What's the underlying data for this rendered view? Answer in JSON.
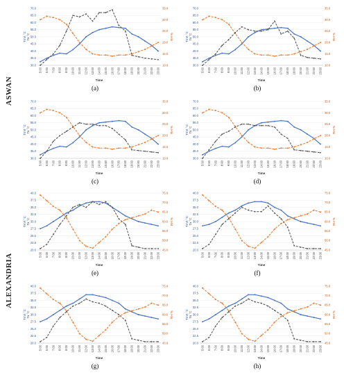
{
  "groups": [
    {
      "label": "ASWAN"
    },
    {
      "label": "ALEXANDRIA"
    }
  ],
  "colors": {
    "tmrt": "#4472C4",
    "rh": "#ED7D31",
    "ta": "#595959",
    "left_axis": "#2E5597",
    "right_axis": "#C55A11"
  },
  "chart_data": [
    {
      "panel": "(a)",
      "type": "line",
      "x": [
        "5:00",
        "6:00",
        "7:00",
        "8:00",
        "9:00",
        "10:00",
        "11:00",
        "12:00",
        "13:00",
        "14:00",
        "15:00",
        "16:00",
        "17:00",
        "18:00",
        "19:00",
        "20:00",
        "21:00",
        "22:00",
        "23:00"
      ],
      "xlabel": "Time",
      "ylabel": "Tmrt °C",
      "ylabel_inner": "Ta °C",
      "y2label": "RH %",
      "ylim": [
        30,
        70
      ],
      "yticks": [
        "30.0",
        "35.0",
        "40.0",
        "45.0",
        "50.0",
        "55.0",
        "60.0",
        "65.0",
        "70.0"
      ],
      "y2lim": [
        10,
        35
      ],
      "y2ticks": [
        "10.0",
        "15.0",
        "20.0",
        "25.0",
        "30.0",
        "35.0"
      ],
      "series": [
        {
          "key": "tmrt",
          "values": [
            32.5,
            35,
            37,
            38.5,
            38,
            41,
            45,
            50,
            53,
            55,
            56,
            57,
            56.5,
            56,
            52,
            50,
            47,
            44,
            40
          ]
        },
        {
          "key": "rh",
          "values": [
            30,
            31.5,
            31,
            30,
            28,
            24,
            20,
            17,
            15,
            14.5,
            14.5,
            14,
            14.5,
            14.5,
            15,
            16,
            17,
            18.5,
            20
          ]
        },
        {
          "key": "ta",
          "values": [
            30,
            34,
            38,
            44,
            54,
            65,
            64,
            66,
            61,
            67,
            67,
            69,
            58,
            54,
            37,
            36,
            35,
            34.5,
            34
          ]
        }
      ]
    },
    {
      "panel": "(b)",
      "type": "line",
      "x": [
        "5:00",
        "6:00",
        "7:00",
        "8:00",
        "9:00",
        "10:00",
        "11:00",
        "12:00",
        "13:00",
        "14:00",
        "15:00",
        "16:00",
        "17:00",
        "18:00",
        "19:00",
        "20:00",
        "21:00",
        "22:00",
        "23:00"
      ],
      "xlabel": "Time",
      "ylabel": "Tmrt °C",
      "ylabel_inner": "Ta °C",
      "y2label": "RH %",
      "ylim": [
        30,
        70
      ],
      "yticks": [
        "30.0",
        "35.0",
        "40.0",
        "45.0",
        "50.0",
        "55.0",
        "60.0",
        "65.0",
        "70.0"
      ],
      "y2lim": [
        10,
        35
      ],
      "y2ticks": [
        "10.0",
        "15.0",
        "20.0",
        "25.0",
        "30.0",
        "35.0"
      ],
      "series": [
        {
          "key": "tmrt",
          "values": [
            32.5,
            35,
            37,
            38.5,
            38,
            41,
            45,
            50,
            53,
            55,
            55.5,
            56,
            56.5,
            56,
            52,
            50,
            47,
            44,
            40
          ]
        },
        {
          "key": "rh",
          "values": [
            30,
            31.5,
            31,
            30,
            28,
            24,
            20,
            17,
            15,
            14.5,
            14.5,
            14,
            14.5,
            14.5,
            15,
            16,
            17,
            18.5,
            20
          ]
        },
        {
          "key": "ta",
          "values": [
            30,
            34,
            38,
            44,
            48,
            53,
            57,
            55,
            54,
            54,
            55,
            61,
            52,
            54,
            49,
            37,
            35.5,
            35,
            34.5
          ]
        }
      ]
    },
    {
      "panel": "(c)",
      "type": "line",
      "x": [
        "5:00",
        "6:00",
        "7:00",
        "8:00",
        "9:00",
        "10:00",
        "11:00",
        "12:00",
        "13:00",
        "14:00",
        "15:00",
        "16:00",
        "17:00",
        "18:00",
        "19:00",
        "20:00",
        "21:00",
        "22:00",
        "23:00"
      ],
      "xlabel": "Time",
      "ylabel": "Tmrt °C",
      "ylabel_inner": "Ta °C",
      "y2label": "RH %",
      "ylim": [
        30,
        70
      ],
      "yticks": [
        "30.0",
        "35.0",
        "40.0",
        "45.0",
        "50.0",
        "55.0",
        "60.0",
        "65.0",
        "70.0"
      ],
      "y2lim": [
        10,
        35
      ],
      "y2ticks": [
        "10.0",
        "15.0",
        "20.0",
        "25.0",
        "30.0",
        "35.0"
      ],
      "series": [
        {
          "key": "tmrt",
          "values": [
            32.5,
            35,
            37,
            38.5,
            38,
            41,
            45,
            50,
            53,
            55,
            55.5,
            56,
            56.5,
            56,
            52,
            50,
            47,
            44,
            40
          ]
        },
        {
          "key": "rh",
          "values": [
            30,
            31.5,
            31,
            30,
            28,
            24,
            20,
            17,
            15,
            14.5,
            14.5,
            14,
            14.5,
            14.5,
            15,
            16,
            17,
            18.5,
            20
          ]
        },
        {
          "key": "ta",
          "values": [
            30,
            35,
            42,
            46,
            49,
            52,
            55,
            54,
            54,
            53,
            53,
            51,
            47,
            43,
            36,
            35.5,
            35,
            34.5,
            34
          ]
        }
      ]
    },
    {
      "panel": "(d)",
      "type": "line",
      "x": [
        "5:00",
        "6:00",
        "7:00",
        "8:00",
        "9:00",
        "10:00",
        "11:00",
        "12:00",
        "13:00",
        "14:00",
        "15:00",
        "16:00",
        "17:00",
        "18:00",
        "19:00",
        "20:00",
        "21:00",
        "22:00",
        "23:00"
      ],
      "xlabel": "Time",
      "ylabel": "Tmrt °C",
      "ylabel_inner": "Ta °C",
      "y2label": "RH %",
      "ylim": [
        30,
        70
      ],
      "yticks": [
        "30.0",
        "35.0",
        "40.0",
        "45.0",
        "50.0",
        "55.0",
        "60.0",
        "65.0",
        "70.0"
      ],
      "y2lim": [
        10,
        35
      ],
      "y2ticks": [
        "10.0",
        "15.0",
        "20.0",
        "25.0",
        "30.0",
        "35.0"
      ],
      "series": [
        {
          "key": "tmrt",
          "values": [
            32.5,
            35,
            37,
            38.5,
            38,
            41,
            45,
            50,
            53,
            55,
            55.5,
            56,
            56.5,
            56,
            52,
            50,
            47,
            44,
            40
          ]
        },
        {
          "key": "rh",
          "values": [
            30,
            31.5,
            31,
            30,
            28,
            24,
            20,
            17,
            15,
            14.5,
            14.5,
            14,
            14.5,
            14.5,
            15,
            16,
            17,
            18.5,
            20
          ]
        },
        {
          "key": "ta",
          "values": [
            30,
            36,
            42,
            47,
            49,
            52,
            54,
            54,
            53,
            53,
            53,
            52,
            47,
            44,
            36,
            35.5,
            35,
            34.5,
            34
          ]
        }
      ]
    },
    {
      "panel": "(e)",
      "type": "line",
      "x": [
        "5:00",
        "6:00",
        "7:00",
        "8:00",
        "9:00",
        "10:00",
        "11:00",
        "12:00",
        "13:00",
        "14:00",
        "15:00",
        "16:00",
        "17:00",
        "18:00",
        "19:00",
        "20:00",
        "21:00",
        "22:00",
        "23:00"
      ],
      "xlabel": "Time",
      "ylabel": "Tmrt °C",
      "ylabel_inner": "Ta °C",
      "y2label": "RH %",
      "ylim": [
        20,
        40
      ],
      "yticks": [
        "20.0",
        "22.5",
        "25.0",
        "27.5",
        "30.0",
        "32.5",
        "35.0",
        "37.5",
        "40.0"
      ],
      "y2lim": [
        45,
        75
      ],
      "y2ticks": [
        "45.0",
        "50.0",
        "55.0",
        "60.0",
        "65.0",
        "70.0",
        "75.0"
      ],
      "series": [
        {
          "key": "tmrt",
          "values": [
            27.5,
            28.5,
            30,
            31.5,
            33,
            34,
            35.5,
            36.5,
            37,
            37,
            36.5,
            35,
            33.5,
            32,
            31,
            30,
            29.5,
            29,
            28.5
          ]
        },
        {
          "key": "rh",
          "values": [
            74,
            71,
            68,
            66,
            62,
            56,
            50,
            47,
            46,
            49,
            52,
            56,
            59,
            61,
            62,
            63,
            64,
            66,
            65
          ]
        },
        {
          "key": "ta",
          "values": [
            20.5,
            22,
            25.5,
            29,
            32,
            35,
            36,
            35,
            37,
            36,
            37,
            35,
            31,
            29,
            21.5,
            21,
            20.5,
            20.5,
            20.5
          ]
        }
      ]
    },
    {
      "panel": "(f)",
      "type": "line",
      "x": [
        "5:00",
        "6:00",
        "7:00",
        "8:00",
        "9:00",
        "10:00",
        "11:00",
        "12:00",
        "13:00",
        "14:00",
        "15:00",
        "16:00",
        "17:00",
        "18:00",
        "19:00",
        "20:00",
        "21:00",
        "22:00",
        "23:00"
      ],
      "xlabel": "Time",
      "ylabel": "Tmrt °C",
      "ylabel_inner": "Ta °C",
      "y2label": "RH %",
      "ylim": [
        20,
        40
      ],
      "yticks": [
        "20.0",
        "22.5",
        "25.0",
        "27.5",
        "30.0",
        "32.5",
        "35.0",
        "37.5",
        "40.0"
      ],
      "y2lim": [
        45,
        75
      ],
      "y2ticks": [
        "45.0",
        "50.0",
        "55.0",
        "60.0",
        "65.0",
        "70.0",
        "75.0"
      ],
      "series": [
        {
          "key": "tmrt",
          "values": [
            28.5,
            29,
            30,
            31.5,
            33,
            34,
            35.5,
            36.5,
            37,
            37,
            36.5,
            35,
            34,
            32,
            31,
            30,
            29.5,
            29,
            28.5
          ]
        },
        {
          "key": "rh",
          "values": [
            74,
            71,
            68,
            66,
            62,
            56,
            50,
            47,
            46,
            49,
            52,
            56,
            59,
            61,
            62,
            63,
            64,
            66,
            65
          ]
        },
        {
          "key": "ta",
          "values": [
            20.5,
            22,
            25.5,
            29,
            31,
            33,
            35,
            34,
            33.5,
            33.5,
            35.5,
            33,
            31,
            28,
            21.5,
            21,
            20.5,
            20.5,
            20.5
          ]
        }
      ]
    },
    {
      "panel": "(g)",
      "type": "line",
      "x": [
        "5:00",
        "6:00",
        "7:00",
        "8:00",
        "9:00",
        "10:00",
        "11:00",
        "12:00",
        "13:00",
        "14:00",
        "15:00",
        "16:00",
        "17:00",
        "18:00",
        "19:00",
        "20:00",
        "21:00",
        "22:00",
        "23:00"
      ],
      "xlabel": "Time",
      "ylabel": "Tmrt °C",
      "ylabel_inner": "Ta °C",
      "y2label": "RH %",
      "ylim": [
        20,
        40
      ],
      "yticks": [
        "20.0",
        "22.5",
        "25.0",
        "27.5",
        "30.0",
        "32.5",
        "35.0",
        "37.5",
        "40.0"
      ],
      "y2lim": [
        45,
        75
      ],
      "y2ticks": [
        "45.0",
        "50.0",
        "55.0",
        "60.0",
        "65.0",
        "70.0",
        "75.0"
      ],
      "series": [
        {
          "key": "tmrt",
          "values": [
            27.5,
            28.5,
            30,
            31.5,
            33,
            34,
            35.5,
            37,
            37,
            36.5,
            36,
            35,
            34,
            32,
            31,
            30,
            29.5,
            29,
            28.5
          ]
        },
        {
          "key": "rh",
          "values": [
            74,
            71,
            68,
            66,
            62,
            56,
            50,
            47,
            46,
            49,
            52,
            56,
            59,
            61,
            62,
            63,
            64,
            66,
            65
          ]
        },
        {
          "key": "ta",
          "values": [
            20.5,
            22,
            26,
            29,
            31,
            33,
            34,
            35.5,
            34.5,
            34,
            33,
            31.5,
            30,
            28,
            21.5,
            21,
            20.5,
            20.5,
            20.5
          ]
        }
      ]
    },
    {
      "panel": "(h)",
      "type": "line",
      "x": [
        "5:00",
        "6:00",
        "7:00",
        "8:00",
        "9:00",
        "10:00",
        "11:00",
        "12:00",
        "13:00",
        "14:00",
        "15:00",
        "16:00",
        "17:00",
        "18:00",
        "19:00",
        "20:00",
        "21:00",
        "22:00",
        "23:00"
      ],
      "xlabel": "Time",
      "ylabel": "Tmrt °C",
      "ylabel_inner": "Ta °C",
      "y2label": "RH %",
      "ylim": [
        20,
        40
      ],
      "yticks": [
        "20.0",
        "22.5",
        "25.0",
        "27.5",
        "30.0",
        "32.5",
        "35.0",
        "37.5",
        "40.0"
      ],
      "y2lim": [
        45,
        75
      ],
      "y2ticks": [
        "45.0",
        "50.0",
        "55.0",
        "60.0",
        "65.0",
        "70.0",
        "75.0"
      ],
      "series": [
        {
          "key": "tmrt",
          "values": [
            27.5,
            28.5,
            30,
            31.5,
            33,
            34,
            35.5,
            37,
            37,
            36.5,
            36,
            35,
            34,
            32,
            31,
            30,
            29.5,
            29,
            28.5
          ]
        },
        {
          "key": "rh",
          "values": [
            74,
            71,
            68,
            66,
            62,
            56,
            50,
            47,
            46,
            49,
            52,
            56,
            59,
            61,
            62,
            63,
            64,
            66,
            65
          ]
        },
        {
          "key": "ta",
          "values": [
            20.5,
            22,
            26,
            29,
            31,
            33,
            34,
            35.5,
            34.5,
            34,
            33,
            31.5,
            30,
            28,
            21.5,
            21,
            20.5,
            20.5,
            20.5
          ]
        }
      ]
    }
  ]
}
